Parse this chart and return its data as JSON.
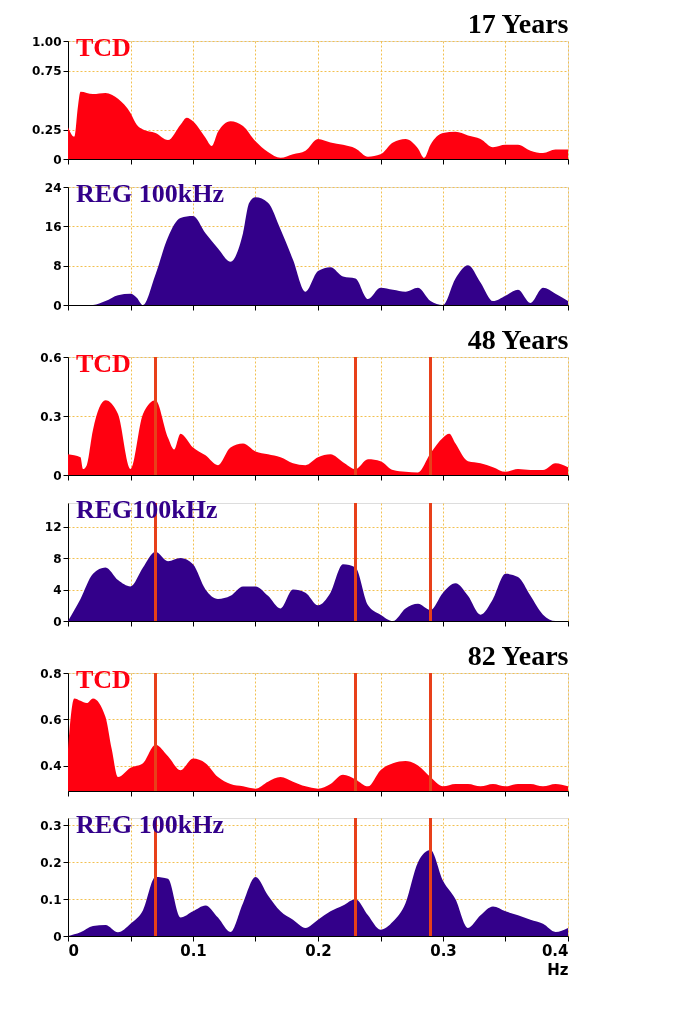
{
  "chart_data": [
    {
      "type": "area",
      "title": "17 Years",
      "x": [
        0,
        0.005,
        0.008,
        0.01,
        0.02,
        0.03,
        0.04,
        0.05,
        0.055,
        0.06,
        0.07,
        0.08,
        0.09,
        0.095,
        0.1,
        0.11,
        0.115,
        0.12,
        0.13,
        0.14,
        0.15,
        0.16,
        0.17,
        0.18,
        0.19,
        0.2,
        0.21,
        0.22,
        0.23,
        0.24,
        0.25,
        0.26,
        0.27,
        0.28,
        0.285,
        0.29,
        0.3,
        0.31,
        0.32,
        0.33,
        0.34,
        0.35,
        0.36,
        0.37,
        0.38,
        0.39,
        0.4
      ],
      "series": [
        {
          "name": "TCD",
          "color": "#ff0010",
          "values": [
            0.27,
            0.19,
            0.45,
            0.57,
            0.55,
            0.56,
            0.51,
            0.39,
            0.29,
            0.25,
            0.22,
            0.16,
            0.29,
            0.35,
            0.32,
            0.18,
            0.11,
            0.23,
            0.32,
            0.28,
            0.15,
            0.06,
            0.01,
            0.04,
            0.07,
            0.17,
            0.14,
            0.12,
            0.09,
            0.02,
            0.04,
            0.14,
            0.17,
            0.09,
            0.01,
            0.12,
            0.22,
            0.23,
            0.2,
            0.17,
            0.1,
            0.12,
            0.12,
            0.07,
            0.05,
            0.08,
            0.08
          ]
        }
      ],
      "xlim": [
        0,
        0.4
      ],
      "xticks": [
        0,
        {
          "value": 0.05,
          "label": null
        },
        {
          "value": 0.1,
          "label": null
        },
        {
          "value": 0.15,
          "label": null
        },
        {
          "value": 0.2,
          "label": null
        },
        {
          "value": 0.25,
          "label": null
        },
        {
          "value": 0.3,
          "label": null
        },
        {
          "value": 0.35,
          "label": null
        },
        {
          "value": 0.4,
          "label": null
        }
      ],
      "ylim": [
        0,
        1
      ],
      "yticks": [
        0,
        0.25,
        {
          "value": 0.75,
          "label": "0.75"
        },
        {
          "value": 1,
          "label": "1.00"
        }
      ],
      "grid": true,
      "tick_labels": "y"
    },
    {
      "type": "area",
      "x": [
        0,
        0.02,
        0.03,
        0.04,
        0.05,
        0.055,
        0.06,
        0.07,
        0.08,
        0.09,
        0.1,
        0.11,
        0.12,
        0.13,
        0.14,
        0.145,
        0.15,
        0.16,
        0.17,
        0.18,
        0.19,
        0.2,
        0.21,
        0.22,
        0.23,
        0.24,
        0.25,
        0.26,
        0.27,
        0.28,
        0.29,
        0.3,
        0.31,
        0.32,
        0.33,
        0.34,
        0.35,
        0.36,
        0.37,
        0.38,
        0.39,
        0.4
      ],
      "series": [
        {
          "name": "REG 100kHz",
          "color": "#33008a",
          "values": [
            0,
            0,
            0.8,
            2.0,
            2.3,
            1.5,
            0,
            6.2,
            13.8,
            17.7,
            18.1,
            14.6,
            11.5,
            8.8,
            14.6,
            20.8,
            21.9,
            20.8,
            15.4,
            9.2,
            2.7,
            6.9,
            7.7,
            5.8,
            5.4,
            1.2,
            3.5,
            3.1,
            2.7,
            3.5,
            0.8,
            0,
            5.4,
            8.1,
            4.6,
            0.8,
            1.9,
            3.1,
            0.4,
            3.5,
            2.3,
            0.8
          ]
        }
      ],
      "xlim": [
        0,
        0.4
      ],
      "xticks": [
        0,
        {
          "value": 0.05,
          "label": null
        },
        {
          "value": 0.1,
          "label": null
        },
        {
          "value": 0.15,
          "label": null
        },
        {
          "value": 0.2,
          "label": null
        },
        {
          "value": 0.25,
          "label": null
        },
        {
          "value": 0.3,
          "label": null
        },
        {
          "value": 0.35,
          "label": null
        },
        {
          "value": 0.4,
          "label": null
        }
      ],
      "ylim": [
        0,
        24
      ],
      "yticks": [
        0,
        8,
        16,
        24
      ],
      "grid": true,
      "tick_labels": "y"
    },
    {
      "type": "area",
      "title": "48 Years",
      "x": [
        0,
        0.01,
        0.012,
        0.015,
        0.02,
        0.03,
        0.04,
        0.05,
        0.06,
        0.07,
        0.08,
        0.085,
        0.09,
        0.1,
        0.11,
        0.12,
        0.13,
        0.14,
        0.15,
        0.16,
        0.17,
        0.18,
        0.19,
        0.2,
        0.21,
        0.22,
        0.23,
        0.24,
        0.25,
        0.26,
        0.27,
        0.28,
        0.29,
        0.3,
        0.305,
        0.31,
        0.32,
        0.33,
        0.34,
        0.35,
        0.36,
        0.37,
        0.38,
        0.39,
        0.4
      ],
      "series": [
        {
          "name": "TCD",
          "color": "#ff0010",
          "values": [
            0.105,
            0.09,
            0.03,
            0.05,
            0.23,
            0.38,
            0.31,
            0.03,
            0.31,
            0.38,
            0.19,
            0.13,
            0.21,
            0.14,
            0.1,
            0.05,
            0.14,
            0.16,
            0.12,
            0.105,
            0.09,
            0.06,
            0.05,
            0.09,
            0.105,
            0.065,
            0.03,
            0.08,
            0.07,
            0.025,
            0.016,
            0.013,
            0.11,
            0.19,
            0.21,
            0.16,
            0.07,
            0.06,
            0.04,
            0.016,
            0.03,
            0.025,
            0.025,
            0.06,
            0.04
          ]
        }
      ],
      "xlim": [
        0,
        0.4
      ],
      "xticks": [
        0,
        {
          "value": 0.05,
          "label": null
        },
        {
          "value": 0.1,
          "label": null
        },
        {
          "value": 0.15,
          "label": null
        },
        {
          "value": 0.2,
          "label": null
        },
        {
          "value": 0.25,
          "label": null
        },
        {
          "value": 0.3,
          "label": null
        },
        {
          "value": 0.35,
          "label": null
        },
        {
          "value": 0.4,
          "label": null
        }
      ],
      "ylim": [
        0,
        0.6
      ],
      "yticks": [
        0,
        0.3,
        0.6
      ],
      "grid": true,
      "tick_labels": "y",
      "ref_lines": [
        {
          "axis": "x",
          "value": 0.07,
          "color": "#e8401a"
        },
        {
          "axis": "x",
          "value": 0.23,
          "color": "#e8401a"
        },
        {
          "axis": "x",
          "value": 0.29,
          "color": "#e8401a"
        }
      ]
    },
    {
      "type": "area",
      "x": [
        0,
        0.01,
        0.02,
        0.03,
        0.04,
        0.05,
        0.06,
        0.07,
        0.08,
        0.09,
        0.1,
        0.11,
        0.12,
        0.13,
        0.14,
        0.15,
        0.16,
        0.17,
        0.18,
        0.19,
        0.2,
        0.21,
        0.22,
        0.23,
        0.24,
        0.25,
        0.26,
        0.27,
        0.28,
        0.29,
        0.3,
        0.31,
        0.32,
        0.33,
        0.34,
        0.35,
        0.36,
        0.37,
        0.38,
        0.39,
        0.4
      ],
      "series": [
        {
          "name": "REG100kHz",
          "color": "#33008a",
          "values": [
            0,
            2.8,
            6.0,
            6.8,
            5.2,
            4.4,
            6.8,
            8.8,
            7.6,
            8.0,
            7.2,
            4.0,
            2.8,
            3.2,
            4.4,
            4.4,
            3.2,
            1.6,
            4.0,
            3.6,
            2.0,
            3.6,
            7.2,
            6.8,
            2.0,
            0.8,
            0,
            1.6,
            2.2,
            1.4,
            3.6,
            4.8,
            3.2,
            0.8,
            2.8,
            6.0,
            5.6,
            3.2,
            0.8,
            0,
            0
          ]
        }
      ],
      "xlim": [
        0,
        0.4
      ],
      "xticks": [
        0,
        {
          "value": 0.05,
          "label": null
        },
        {
          "value": 0.1,
          "label": null
        },
        {
          "value": 0.15,
          "label": null
        },
        {
          "value": 0.2,
          "label": null
        },
        {
          "value": 0.25,
          "label": null
        },
        {
          "value": 0.3,
          "label": null
        },
        {
          "value": 0.35,
          "label": null
        },
        {
          "value": 0.4,
          "label": null
        }
      ],
      "ylim": [
        0,
        15
      ],
      "yticks": [
        0,
        4,
        8,
        12
      ],
      "grid": true,
      "tick_labels": "y",
      "ref_lines": [
        {
          "axis": "x",
          "value": 0.07,
          "color": "#e8401a"
        },
        {
          "axis": "x",
          "value": 0.23,
          "color": "#e8401a"
        },
        {
          "axis": "x",
          "value": 0.29,
          "color": "#e8401a"
        }
      ]
    },
    {
      "type": "area",
      "title": "82 Years",
      "x": [
        0,
        0.005,
        0.01,
        0.015,
        0.02,
        0.03,
        0.035,
        0.04,
        0.05,
        0.06,
        0.07,
        0.08,
        0.09,
        0.1,
        0.11,
        0.12,
        0.13,
        0.14,
        0.15,
        0.16,
        0.17,
        0.18,
        0.19,
        0.2,
        0.21,
        0.22,
        0.23,
        0.24,
        0.25,
        0.26,
        0.27,
        0.28,
        0.29,
        0.3,
        0.31,
        0.32,
        0.33,
        0.34,
        0.35,
        0.36,
        0.37,
        0.38,
        0.39,
        0.4
      ],
      "series": [
        {
          "name": "TCD",
          "color": "#ff0010",
          "values": [
            0.47,
            0.69,
            0.68,
            0.67,
            0.69,
            0.61,
            0.47,
            0.35,
            0.39,
            0.41,
            0.49,
            0.44,
            0.38,
            0.43,
            0.41,
            0.35,
            0.32,
            0.31,
            0.3,
            0.33,
            0.35,
            0.33,
            0.31,
            0.3,
            0.32,
            0.36,
            0.34,
            0.31,
            0.38,
            0.41,
            0.42,
            0.4,
            0.35,
            0.31,
            0.32,
            0.32,
            0.31,
            0.32,
            0.31,
            0.32,
            0.32,
            0.31,
            0.32,
            0.31
          ]
        }
      ],
      "xlim": [
        0,
        0.4
      ],
      "xticks": [
        0,
        {
          "value": 0.05,
          "label": null
        },
        {
          "value": 0.1,
          "label": null
        },
        {
          "value": 0.15,
          "label": null
        },
        {
          "value": 0.2,
          "label": null
        },
        {
          "value": 0.25,
          "label": null
        },
        {
          "value": 0.3,
          "label": null
        },
        {
          "value": 0.35,
          "label": null
        },
        {
          "value": 0.4,
          "label": null
        }
      ],
      "ylim": [
        0.29,
        0.8
      ],
      "yticks": [
        0.4,
        0.6,
        0.8
      ],
      "grid": true,
      "tick_labels": "y",
      "ref_lines": [
        {
          "axis": "x",
          "value": 0.07,
          "color": "#e8401a"
        },
        {
          "axis": "x",
          "value": 0.23,
          "color": "#e8401a"
        },
        {
          "axis": "x",
          "value": 0.29,
          "color": "#e8401a"
        }
      ]
    },
    {
      "type": "area",
      "xlabel": "Hz",
      "x": [
        0,
        0.01,
        0.02,
        0.03,
        0.04,
        0.05,
        0.06,
        0.07,
        0.08,
        0.09,
        0.1,
        0.11,
        0.12,
        0.13,
        0.14,
        0.15,
        0.16,
        0.17,
        0.18,
        0.19,
        0.2,
        0.21,
        0.22,
        0.23,
        0.24,
        0.25,
        0.26,
        0.27,
        0.28,
        0.29,
        0.3,
        0.31,
        0.32,
        0.33,
        0.34,
        0.35,
        0.36,
        0.37,
        0.38,
        0.39,
        0.4
      ],
      "series": [
        {
          "name": "REG 100kHz",
          "color": "#33008a",
          "values": [
            0,
            0.01,
            0.027,
            0.03,
            0.01,
            0.033,
            0.07,
            0.16,
            0.155,
            0.05,
            0.067,
            0.083,
            0.05,
            0.011,
            0.089,
            0.16,
            0.11,
            0.067,
            0.044,
            0.022,
            0.044,
            0.067,
            0.083,
            0.1,
            0.056,
            0.017,
            0.039,
            0.089,
            0.2,
            0.233,
            0.15,
            0.1,
            0.022,
            0.056,
            0.08,
            0.067,
            0.056,
            0.044,
            0.033,
            0.011,
            0.022
          ]
        }
      ],
      "xlim": [
        0,
        0.4
      ],
      "xticks": [
        0,
        {
          "value": 0.05,
          "label": null
        },
        0.1,
        {
          "value": 0.15,
          "label": null
        },
        0.2,
        {
          "value": 0.25,
          "label": null
        },
        0.3,
        {
          "value": 0.35,
          "label": null
        },
        0.4
      ],
      "ylim": [
        0,
        0.32
      ],
      "yticks": [
        0,
        0.1,
        0.2,
        0.3
      ],
      "grid": true,
      "ref_lines": [
        {
          "axis": "x",
          "value": 0.07,
          "color": "#e8401a"
        },
        {
          "axis": "x",
          "value": 0.23,
          "color": "#e8401a"
        },
        {
          "axis": "x",
          "value": 0.29,
          "color": "#e8401a"
        }
      ]
    }
  ]
}
